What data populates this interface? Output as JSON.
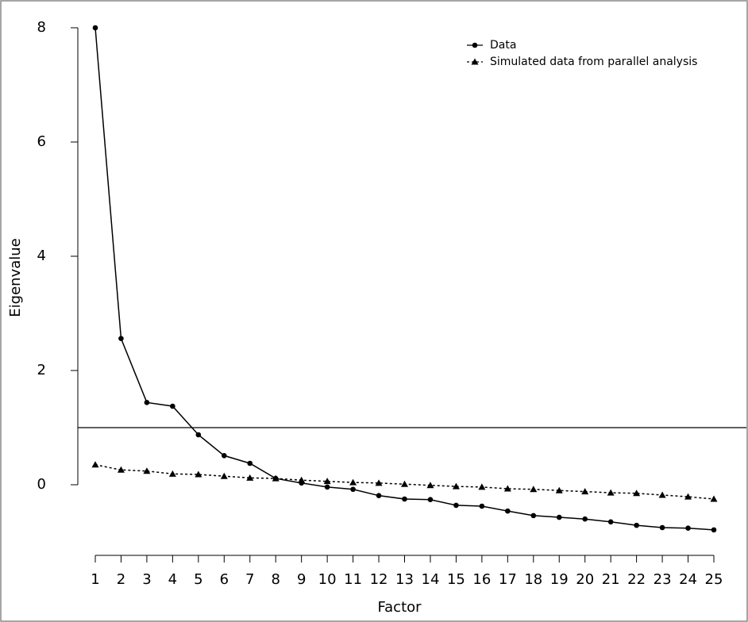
{
  "chart_data": {
    "type": "line",
    "x_label": "Factor",
    "y_label": "Eigenvalue",
    "x": [
      1,
      2,
      3,
      4,
      5,
      6,
      7,
      8,
      9,
      10,
      11,
      12,
      13,
      14,
      15,
      16,
      17,
      18,
      19,
      20,
      21,
      22,
      23,
      24,
      25
    ],
    "series": [
      {
        "name": "Data",
        "color": "#000000",
        "marker": "circle",
        "dashed": false,
        "values": [
          8.0,
          2.56,
          1.44,
          1.375,
          0.875,
          0.51,
          0.375,
          0.11,
          0.03,
          -0.04,
          -0.08,
          -0.19,
          -0.25,
          -0.26,
          -0.36,
          -0.375,
          -0.46,
          -0.54,
          -0.57,
          -0.6,
          -0.65,
          -0.71,
          -0.75,
          -0.76,
          -0.79
        ]
      },
      {
        "name": "Simulated data from parallel analysis",
        "color": "#000000",
        "marker": "triangle",
        "dashed": true,
        "values": [
          0.35,
          0.26,
          0.24,
          0.19,
          0.18,
          0.15,
          0.12,
          0.11,
          0.08,
          0.06,
          0.04,
          0.03,
          0.01,
          -0.01,
          -0.03,
          -0.04,
          -0.07,
          -0.08,
          -0.1,
          -0.12,
          -0.14,
          -0.15,
          -0.18,
          -0.21,
          -0.25
        ]
      }
    ],
    "reference_line": 1,
    "xlim": [
      1,
      25
    ],
    "xticks": [
      1,
      2,
      3,
      4,
      5,
      6,
      7,
      8,
      9,
      10,
      11,
      12,
      13,
      14,
      15,
      16,
      17,
      18,
      19,
      20,
      21,
      22,
      23,
      24,
      25
    ],
    "ylim": [
      -1.25,
      8
    ],
    "yticks": [
      0,
      2,
      4,
      6,
      8
    ],
    "legend_position": "top-right"
  }
}
